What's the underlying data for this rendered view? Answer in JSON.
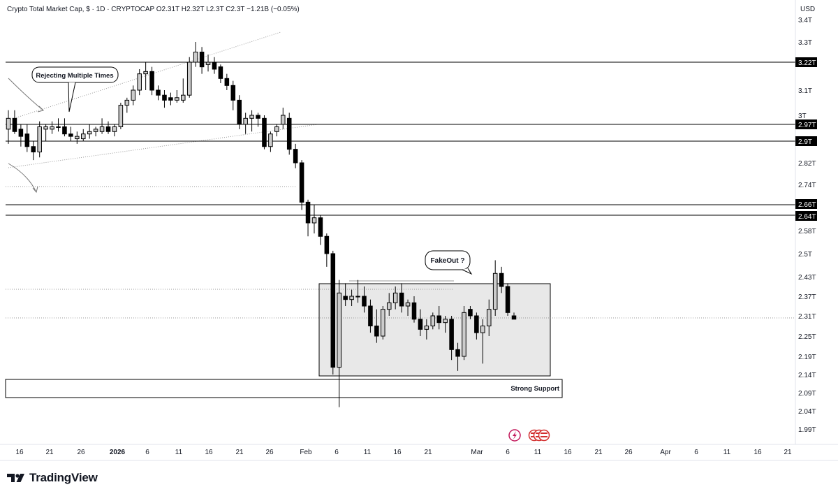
{
  "header": {
    "text": "Crypto Total Market Cap, $ · 1D · CRYPTOCAP  O2.31T  H2.32T  L2.3T  C2.3T  −1.21B (−0.05%)"
  },
  "currency": "USD",
  "brand": "TradingView",
  "annotations": {
    "rejecting": "Rejecting Multiple Times",
    "fakeout": "FakeOut ?",
    "support": "Strong Support"
  },
  "colors": {
    "up_candle": "#cccccc",
    "down_candle": "#000000",
    "line": "#000000",
    "box_fill": "#e8e8e8",
    "dotted": "#999999"
  },
  "chart_data": {
    "type": "candlestick",
    "title": "Crypto Total Market Cap, $",
    "interval": "1D",
    "symbol": "CRYPTOCAP",
    "ohlc_summary": {
      "open": "2.31T",
      "high": "2.32T",
      "low": "2.3T",
      "close": "2.3T",
      "change": "−1.21B (−0.05%)"
    },
    "y_axis_labels": [
      "3.4T",
      "3.3T",
      "3.22T",
      "3.1T",
      "3T",
      "2.97T",
      "2.9T",
      "2.82T",
      "2.74T",
      "2.66T",
      "2.64T",
      "2.58T",
      "2.5T",
      "2.43T",
      "2.37T",
      "2.31T",
      "2.25T",
      "2.19T",
      "2.14T",
      "2.09T",
      "2.04T",
      "1.99T"
    ],
    "x_axis_labels": [
      "16",
      "21",
      "26",
      "2026",
      "6",
      "11",
      "16",
      "21",
      "26",
      "Feb",
      "6",
      "11",
      "16",
      "21",
      "Mar",
      "6",
      "11",
      "16",
      "21",
      "26",
      "Apr",
      "6",
      "11",
      "16",
      "21"
    ],
    "horizontal_levels": [
      "3.22T",
      "2.97T",
      "2.9T",
      "2.66T",
      "2.64T"
    ],
    "dotted_levels": [
      "2.43T",
      "2.31T"
    ],
    "range_box": {
      "top": "2.43T",
      "bottom": "2.14T"
    },
    "support_zone": {
      "top": "2.14T",
      "bottom": "2.09T"
    },
    "candles": [
      {
        "o": 2.95,
        "h": 3.02,
        "l": 2.89,
        "c": 2.99
      },
      {
        "o": 2.99,
        "h": 3.02,
        "l": 2.93,
        "c": 2.94
      },
      {
        "o": 2.95,
        "h": 2.97,
        "l": 2.88,
        "c": 2.92
      },
      {
        "o": 2.93,
        "h": 2.97,
        "l": 2.86,
        "c": 2.88
      },
      {
        "o": 2.88,
        "h": 2.9,
        "l": 2.83,
        "c": 2.86
      },
      {
        "o": 2.86,
        "h": 2.98,
        "l": 2.84,
        "c": 2.96
      },
      {
        "o": 2.95,
        "h": 2.97,
        "l": 2.9,
        "c": 2.96
      },
      {
        "o": 2.95,
        "h": 2.98,
        "l": 2.93,
        "c": 2.96
      },
      {
        "o": 2.96,
        "h": 2.99,
        "l": 2.94,
        "c": 2.96
      },
      {
        "o": 2.96,
        "h": 2.99,
        "l": 2.92,
        "c": 2.93
      },
      {
        "o": 2.93,
        "h": 2.96,
        "l": 2.9,
        "c": 2.92
      },
      {
        "o": 2.91,
        "h": 2.94,
        "l": 2.89,
        "c": 2.92
      },
      {
        "o": 2.91,
        "h": 2.95,
        "l": 2.9,
        "c": 2.93
      },
      {
        "o": 2.93,
        "h": 2.97,
        "l": 2.91,
        "c": 2.94
      },
      {
        "o": 2.94,
        "h": 2.96,
        "l": 2.92,
        "c": 2.95
      },
      {
        "o": 2.94,
        "h": 2.99,
        "l": 2.93,
        "c": 2.96
      },
      {
        "o": 2.96,
        "h": 2.98,
        "l": 2.93,
        "c": 2.94
      },
      {
        "o": 2.94,
        "h": 2.97,
        "l": 2.92,
        "c": 2.96
      },
      {
        "o": 2.96,
        "h": 3.05,
        "l": 2.95,
        "c": 3.04
      },
      {
        "o": 3.04,
        "h": 3.07,
        "l": 3.01,
        "c": 3.06
      },
      {
        "o": 3.06,
        "h": 3.12,
        "l": 3.04,
        "c": 3.1
      },
      {
        "o": 3.1,
        "h": 3.19,
        "l": 3.08,
        "c": 3.17
      },
      {
        "o": 3.17,
        "h": 3.22,
        "l": 3.1,
        "c": 3.18
      },
      {
        "o": 3.18,
        "h": 3.2,
        "l": 3.08,
        "c": 3.1
      },
      {
        "o": 3.1,
        "h": 3.12,
        "l": 3.06,
        "c": 3.08
      },
      {
        "o": 3.08,
        "h": 3.1,
        "l": 3.03,
        "c": 3.06
      },
      {
        "o": 3.07,
        "h": 3.09,
        "l": 3.04,
        "c": 3.06
      },
      {
        "o": 3.06,
        "h": 3.1,
        "l": 3.05,
        "c": 3.07
      },
      {
        "o": 3.06,
        "h": 3.15,
        "l": 3.05,
        "c": 3.08
      },
      {
        "o": 3.08,
        "h": 3.24,
        "l": 3.07,
        "c": 3.22
      },
      {
        "o": 3.22,
        "h": 3.3,
        "l": 3.2,
        "c": 3.26
      },
      {
        "o": 3.26,
        "h": 3.28,
        "l": 3.17,
        "c": 3.2
      },
      {
        "o": 3.21,
        "h": 3.25,
        "l": 3.18,
        "c": 3.22
      },
      {
        "o": 3.22,
        "h": 3.24,
        "l": 3.17,
        "c": 3.19
      },
      {
        "o": 3.2,
        "h": 3.21,
        "l": 3.13,
        "c": 3.15
      },
      {
        "o": 3.15,
        "h": 3.17,
        "l": 3.1,
        "c": 3.12
      },
      {
        "o": 3.12,
        "h": 3.14,
        "l": 3.02,
        "c": 3.06
      },
      {
        "o": 3.06,
        "h": 3.08,
        "l": 2.95,
        "c": 2.97
      },
      {
        "o": 2.97,
        "h": 3.01,
        "l": 2.93,
        "c": 2.99
      },
      {
        "o": 2.99,
        "h": 3.02,
        "l": 2.94,
        "c": 3.0
      },
      {
        "o": 3.0,
        "h": 3.01,
        "l": 2.96,
        "c": 2.99
      },
      {
        "o": 2.99,
        "h": 3.0,
        "l": 2.87,
        "c": 2.88
      },
      {
        "o": 2.88,
        "h": 2.94,
        "l": 2.86,
        "c": 2.93
      },
      {
        "o": 2.94,
        "h": 2.97,
        "l": 2.92,
        "c": 2.96
      },
      {
        "o": 2.97,
        "h": 3.03,
        "l": 2.95,
        "c": 3.0
      },
      {
        "o": 2.99,
        "h": 3.01,
        "l": 2.85,
        "c": 2.87
      },
      {
        "o": 2.87,
        "h": 2.89,
        "l": 2.8,
        "c": 2.82
      },
      {
        "o": 2.82,
        "h": 2.83,
        "l": 2.65,
        "c": 2.67
      },
      {
        "o": 2.67,
        "h": 2.68,
        "l": 2.56,
        "c": 2.61
      },
      {
        "o": 2.61,
        "h": 2.66,
        "l": 2.57,
        "c": 2.63
      },
      {
        "o": 2.63,
        "h": 2.64,
        "l": 2.53,
        "c": 2.56
      },
      {
        "o": 2.56,
        "h": 2.57,
        "l": 2.46,
        "c": 2.5
      },
      {
        "o": 2.5,
        "h": 2.51,
        "l": 2.14,
        "c": 2.16
      },
      {
        "o": 2.16,
        "h": 2.42,
        "l": 2.05,
        "c": 2.38
      },
      {
        "o": 2.37,
        "h": 2.41,
        "l": 2.34,
        "c": 2.36
      },
      {
        "o": 2.36,
        "h": 2.39,
        "l": 2.34,
        "c": 2.37
      },
      {
        "o": 2.37,
        "h": 2.42,
        "l": 2.35,
        "c": 2.37
      },
      {
        "o": 2.37,
        "h": 2.4,
        "l": 2.32,
        "c": 2.34
      },
      {
        "o": 2.34,
        "h": 2.36,
        "l": 2.26,
        "c": 2.28
      },
      {
        "o": 2.28,
        "h": 2.33,
        "l": 2.23,
        "c": 2.25
      },
      {
        "o": 2.25,
        "h": 2.34,
        "l": 2.24,
        "c": 2.33
      },
      {
        "o": 2.33,
        "h": 2.38,
        "l": 2.31,
        "c": 2.35
      },
      {
        "o": 2.35,
        "h": 2.4,
        "l": 2.33,
        "c": 2.38
      },
      {
        "o": 2.38,
        "h": 2.41,
        "l": 2.32,
        "c": 2.34
      },
      {
        "o": 2.34,
        "h": 2.36,
        "l": 2.31,
        "c": 2.35
      },
      {
        "o": 2.35,
        "h": 2.37,
        "l": 2.29,
        "c": 2.3
      },
      {
        "o": 2.3,
        "h": 2.33,
        "l": 2.25,
        "c": 2.27
      },
      {
        "o": 2.27,
        "h": 2.3,
        "l": 2.24,
        "c": 2.28
      },
      {
        "o": 2.28,
        "h": 2.32,
        "l": 2.27,
        "c": 2.31
      },
      {
        "o": 2.31,
        "h": 2.34,
        "l": 2.27,
        "c": 2.29
      },
      {
        "o": 2.29,
        "h": 2.31,
        "l": 2.26,
        "c": 2.3
      },
      {
        "o": 2.3,
        "h": 2.31,
        "l": 2.18,
        "c": 2.21
      },
      {
        "o": 2.21,
        "h": 2.23,
        "l": 2.15,
        "c": 2.19
      },
      {
        "o": 2.19,
        "h": 2.34,
        "l": 2.18,
        "c": 2.32
      },
      {
        "o": 2.33,
        "h": 2.34,
        "l": 2.3,
        "c": 2.31
      },
      {
        "o": 2.31,
        "h": 2.32,
        "l": 2.24,
        "c": 2.26
      },
      {
        "o": 2.26,
        "h": 2.3,
        "l": 2.17,
        "c": 2.28
      },
      {
        "o": 2.28,
        "h": 2.36,
        "l": 2.25,
        "c": 2.33
      },
      {
        "o": 2.33,
        "h": 2.48,
        "l": 2.31,
        "c": 2.44
      },
      {
        "o": 2.44,
        "h": 2.46,
        "l": 2.38,
        "c": 2.4
      },
      {
        "o": 2.4,
        "h": 2.41,
        "l": 2.31,
        "c": 2.32
      },
      {
        "o": 2.31,
        "h": 2.32,
        "l": 2.3,
        "c": 2.3
      }
    ]
  }
}
